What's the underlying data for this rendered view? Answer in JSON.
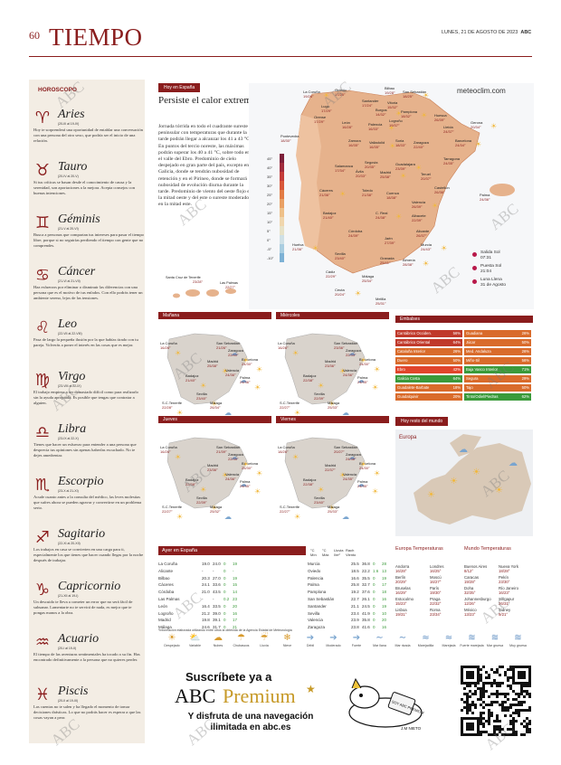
{
  "header": {
    "page_number": "60",
    "section": "TIEMPO",
    "date": "LUNES, 21 DE AGOSTO DE 2023",
    "brand": "ABC"
  },
  "watermark": "ABC",
  "horoscope": {
    "title": "HOROSCOPO",
    "signs": [
      {
        "name": "Aries",
        "glyph": "♈",
        "dates": "(20-III al 19-IV)",
        "text": "Hoy te sorprenderá una oportunidad de entablar una conversación con una persona del otro sexo, que podría ser el inicio de una relación."
      },
      {
        "name": "Tauro",
        "glyph": "♉",
        "dates": "(20-IV al 20-V)",
        "text": "Si tus críticas se basan desde el conocimiento de causa y la serenidad, son aportaciones a la mejora. Acepta consejos con buenas intenciones."
      },
      {
        "name": "Géminis",
        "glyph": "♊",
        "dates": "(21-V al 20-VI)",
        "text": "Busca a personas que compartan tus intereses para pasar el tiempo libre, porque si no seguirías perdiendo el tiempo con gente que no comprendes."
      },
      {
        "name": "Cáncer",
        "glyph": "♋",
        "dates": "(21-VI al 21-VII)",
        "text": "Haz esfuerzos por eliminar o disminuir las diferencias con una persona que es el motivo de tus enfados. Con ello podrás tener un ambiente sereno, lejos de las tensiones."
      },
      {
        "name": "Leo",
        "glyph": "♌",
        "dates": "(22-VII al 22-VIII)",
        "text": "Pasa de largo la pequeña ilusión por la que habías tirado con tu pareja. Volverás a poner el interés en las cosas que es mejor."
      },
      {
        "name": "Virgo",
        "glyph": "♍",
        "dates": "(23-VIII al 22-IX)",
        "text": "El trabajo empieza a ser demasiado difícil como para realizarlo sin la ayuda apropiada. Es posible que tengas que contratar a alguien."
      },
      {
        "name": "Libra",
        "glyph": "♎",
        "dates": "(23-IX al 22-X)",
        "text": "Tienes que hacer un esfuerzo para entender a una persona que desprecia tus opiniones sin apenas haberlas escuchado. No te dejes amedrentar."
      },
      {
        "name": "Escorpio",
        "glyph": "♏",
        "dates": "(23-X al 21-XI)",
        "text": "Acude cuanto antes a la consulta del médico, las leves molestias que sufres ahora se pueden agravar y convertirse en un problema serio."
      },
      {
        "name": "Sagitario",
        "glyph": "♐",
        "dates": "(22-XI al 20-XII)",
        "text": "Los trabajos en casa se convierten en una carga para ti, especialmente los que tienes que hacer cuando llegas por la noche después de trabajar."
      },
      {
        "name": "Capricornio",
        "glyph": "♑",
        "dates": "(21-XII al 19-I)",
        "text": "Un descuido te lleva a cometer un error que no será fácil de subsanar. Lamentarte no te servirá de nada, es mejor que te pongas manos a la obra."
      },
      {
        "name": "Acuario",
        "glyph": "♒",
        "dates": "(20-I al 19-II)",
        "text": "El tiempo de las aventuras sentimentales ha tocado a su fin. Has encontrado definitivamente a la persona que no quieres perder."
      },
      {
        "name": "Piscis",
        "glyph": "♓",
        "dates": "(20-II al 19-III)",
        "text": "Las cuentas no te salen y ha llegado el momento de tomar decisiones drásticas. Lo que no podrás hacer es esperar a que las cosas vayan a peor."
      }
    ]
  },
  "today": {
    "label": "Hoy en España",
    "headline": "Persiste el calor extremo",
    "body": "Jornada tórrida en todo el cuadrante sureste peninsular con temperaturas que durante la tarde podrán llegar a alcanzar los 41 a 43 °C. En puntos del tercio noreste, las máximas podrán superar los 40 a 41 °C, sobre todo en el valle del Ebro. Predominio de cielo despejado en gran parte del país, excepto en Galicia, donde se tendrán nubosidad de retención y en el Pirineo, donde se formará nubosidad de evolución diurna durante la tarde. Predominio de viento del oeste flojo en la mitad oeste y del este o sureste moderado en la mitad este."
  },
  "brand_site": "meteoclim.com",
  "main_map": {
    "scale": [
      "45°",
      "40°",
      "35°",
      "30°",
      "25°",
      "20°",
      "15°",
      "10°",
      "5°",
      "0°",
      "-5°",
      "-10°"
    ],
    "cities": [
      {
        "name": "La Coruña",
        "t": "19/26°"
      },
      {
        "name": "Oviedo",
        "t": "17/25°"
      },
      {
        "name": "Bilbao",
        "t": "19/28°"
      },
      {
        "name": "San Sebastián",
        "t": "18/25°"
      },
      {
        "name": "Lugo",
        "t": "17/29°"
      },
      {
        "name": "Santander",
        "t": "17/24°"
      },
      {
        "name": "Pamplona",
        "t": "18/32°"
      },
      {
        "name": "Huesca",
        "t": "26/39°"
      },
      {
        "name": "Orense",
        "t": "17/29°"
      },
      {
        "name": "Burgos",
        "t": "14/32°"
      },
      {
        "name": "Vitoria",
        "t": "15/32°"
      },
      {
        "name": "Lleida",
        "t": "24/37°"
      },
      {
        "name": "Gerona",
        "t": "20/34°"
      },
      {
        "name": "Pontevedra",
        "t": "18/30°"
      },
      {
        "name": "León",
        "t": "16/28°"
      },
      {
        "name": "Palencia",
        "t": "16/33°"
      },
      {
        "name": "Logroño",
        "t": "19/37°"
      },
      {
        "name": "Zamora",
        "t": "16/35°"
      },
      {
        "name": "Valladolid",
        "t": "16/35°"
      },
      {
        "name": "Soria",
        "t": "18/33°"
      },
      {
        "name": "Zaragoza",
        "t": "22/40°"
      },
      {
        "name": "Barcelona",
        "t": "24/34°"
      },
      {
        "name": "Salamanca",
        "t": "17/34°"
      },
      {
        "name": "Segovia",
        "t": "20/35°"
      },
      {
        "name": "Guadalajara",
        "t": "23/39°"
      },
      {
        "name": "Tarragona",
        "t": "24/35°"
      },
      {
        "name": "Ávila",
        "t": "20/33°"
      },
      {
        "name": "Madrid",
        "t": "25/38°"
      },
      {
        "name": "Teruel",
        "t": "20/37°"
      },
      {
        "name": "Castellón",
        "t": "26/36°"
      },
      {
        "name": "Cáceres",
        "t": "21/36°"
      },
      {
        "name": "Toledo",
        "t": "21/38°"
      },
      {
        "name": "Cuenca",
        "t": "18/38°"
      },
      {
        "name": "Valencia",
        "t": "26/39°"
      },
      {
        "name": "Palma",
        "t": "24/36°"
      },
      {
        "name": "Badajoz",
        "t": "21/40°"
      },
      {
        "name": "C. Real",
        "t": "24/38°"
      },
      {
        "name": "Albacete",
        "t": "22/39°"
      },
      {
        "name": "Alicante",
        "t": "26/37°"
      },
      {
        "name": "Huelva",
        "t": "21/36°"
      },
      {
        "name": "Córdoba",
        "t": "24/39°"
      },
      {
        "name": "Jaén",
        "t": "27/39°"
      },
      {
        "name": "Murcia",
        "t": "24/43°"
      },
      {
        "name": "Sevilla",
        "t": "23/40°"
      },
      {
        "name": "Granada",
        "t": "25/41°"
      },
      {
        "name": "Almería",
        "t": "28/38°"
      },
      {
        "name": "Cádiz",
        "t": "22/29°"
      },
      {
        "name": "Málaga",
        "t": "25/34°"
      },
      {
        "name": "Ceuta",
        "t": "20/24°"
      },
      {
        "name": "Melilla",
        "t": "25/31°"
      }
    ],
    "canarias": [
      {
        "name": "Santa Cruz de Tenerife",
        "t": "23/28°"
      },
      {
        "name": "Las Palmas",
        "t": "22/27°"
      }
    ]
  },
  "sun": [
    {
      "label": "Salida Sol",
      "value": "07:31"
    },
    {
      "label": "Puesta Sol",
      "value": "21:04"
    },
    {
      "label": "Luna Llena",
      "value": "31 de Agosto"
    }
  ],
  "forecast_panels": [
    {
      "day": "Mañana",
      "cities": [
        {
          "name": "La Coruña",
          "t": "16/26°"
        },
        {
          "name": "San Sebastián",
          "t": "21/26°"
        },
        {
          "name": "Barcelona",
          "t": "24/30°"
        },
        {
          "name": "Zaragoza",
          "t": "22/40°"
        },
        {
          "name": "Madrid",
          "t": "25/38°"
        },
        {
          "name": "Valencia",
          "t": "24/36°"
        },
        {
          "name": "Palma",
          "t": "24/36°"
        },
        {
          "name": "Badajoz",
          "t": "21/40°"
        },
        {
          "name": "Sevilla",
          "t": "23/40°"
        },
        {
          "name": "Málaga",
          "t": "26/34°"
        },
        {
          "name": "S.C.Tenerife",
          "t": "22/28°"
        }
      ]
    },
    {
      "day": "Miércoles",
      "cities": [
        {
          "name": "La Coruña",
          "t": "16/26°"
        },
        {
          "name": "San Sebastián",
          "t": "23/36°"
        },
        {
          "name": "Barcelona",
          "t": "24/30°"
        },
        {
          "name": "Zaragoza",
          "t": "22/33°"
        },
        {
          "name": "Madrid",
          "t": "23/36°"
        },
        {
          "name": "Valencia",
          "t": "24/36°"
        },
        {
          "name": "Palma",
          "t": "24/35°"
        },
        {
          "name": "Badajoz",
          "t": "22/38°"
        },
        {
          "name": "Sevilla",
          "t": "22/39°"
        },
        {
          "name": "Málaga",
          "t": "25/33°"
        },
        {
          "name": "S.C.Tenerife",
          "t": "22/27°"
        }
      ]
    },
    {
      "day": "Jueves",
      "cities": [
        {
          "name": "La Coruña",
          "t": "16/26°"
        },
        {
          "name": "San Sebastián",
          "t": "21/39°"
        },
        {
          "name": "Barcelona",
          "t": "25/30°"
        },
        {
          "name": "Zaragoza",
          "t": "22/35°"
        },
        {
          "name": "Madrid",
          "t": "23/36°"
        },
        {
          "name": "Valencia",
          "t": "24/36°"
        },
        {
          "name": "Palma",
          "t": "24/35°"
        },
        {
          "name": "Badajoz",
          "t": "22/38°"
        },
        {
          "name": "Sevilla",
          "t": "22/39°"
        },
        {
          "name": "Málaga",
          "t": "25/32°"
        },
        {
          "name": "S.C.Tenerife",
          "t": "22/27°"
        }
      ]
    },
    {
      "day": "Viernes",
      "cities": [
        {
          "name": "La Coruña",
          "t": "18/26°"
        },
        {
          "name": "San Sebastián",
          "t": "20/27°"
        },
        {
          "name": "Barcelona",
          "t": "24/30°"
        },
        {
          "name": "Zaragoza",
          "t": "24/38°"
        },
        {
          "name": "Madrid",
          "t": "22/37°"
        },
        {
          "name": "Valencia",
          "t": "24/35°"
        },
        {
          "name": "Palma",
          "t": "24/35°"
        },
        {
          "name": "Badajoz",
          "t": "22/38°"
        },
        {
          "name": "Sevilla",
          "t": "23/40°"
        },
        {
          "name": "Málaga",
          "t": "25/33°"
        },
        {
          "name": "S.C.Tenerife",
          "t": "22/27°"
        }
      ]
    }
  ],
  "embalses": {
    "title": "Embalses",
    "left": [
      {
        "name": "Cantábrico Occiden.",
        "v": "56%",
        "c": "#c0392b"
      },
      {
        "name": "Cantábrico Oriental",
        "v": "64%",
        "c": "#c0392b"
      },
      {
        "name": "Cataluña Interior",
        "v": "26%",
        "c": "#d96b2b"
      },
      {
        "name": "Duero",
        "v": "50%",
        "c": "#d96b2b"
      },
      {
        "name": "Ebro",
        "v": "42%",
        "c": "#e1452b"
      },
      {
        "name": "Galicia Costa",
        "v": "64%",
        "c": "#3a9a3a"
      },
      {
        "name": "Guadalete-Barbate",
        "v": "18%",
        "c": "#d96b2b"
      },
      {
        "name": "Guadalquivir",
        "v": "20%",
        "c": "#d96b2b"
      }
    ],
    "right": [
      {
        "name": "Guadiana",
        "v": "26%",
        "c": "#d96b2b"
      },
      {
        "name": "Júcar",
        "v": "50%",
        "c": "#d96b2b"
      },
      {
        "name": "Med. Andaluza",
        "v": "26%",
        "c": "#d96b2b"
      },
      {
        "name": "Miño-Sil",
        "v": "56%",
        "c": "#d96b2b"
      },
      {
        "name": "Baja Vasco Interior",
        "v": "71%",
        "c": "#3a9a3a"
      },
      {
        "name": "Segura",
        "v": "29%",
        "c": "#d96b2b"
      },
      {
        "name": "Tajo",
        "v": "50%",
        "c": "#d96b2b"
      },
      {
        "name": "Tinto/Odiel/Piedras",
        "v": "62%",
        "c": "#3a9a3a"
      }
    ]
  },
  "world": {
    "label": "Hoy resto del mundo",
    "region": "Europa"
  },
  "ayer": {
    "label": "Ayer en España",
    "headers": [
      "°C Mín",
      "°C Máx",
      "Lluvia l/m²",
      "Rach Viento"
    ],
    "left": [
      [
        "La Coruña",
        "19.0",
        "24.0",
        "0",
        "19"
      ],
      [
        "Alicante",
        "-",
        "-",
        "0",
        "-"
      ],
      [
        "Bilbao",
        "20.3",
        "27.0",
        "0",
        "19"
      ],
      [
        "Cáceres",
        "24.1",
        "33.6",
        "0",
        "15"
      ],
      [
        "Córdoba",
        "21.0",
        "43.5",
        "0",
        "14"
      ],
      [
        "Las Palmas",
        "-",
        "-",
        "0.2",
        "23"
      ],
      [
        "León",
        "16.4",
        "33.5",
        "0",
        "20"
      ],
      [
        "Logroño",
        "21.2",
        "39.0",
        "0",
        "16"
      ],
      [
        "Madrid",
        "19.8",
        "39.1",
        "0",
        "17"
      ],
      [
        "Málaga",
        "24.6",
        "31.7",
        "0",
        "21"
      ]
    ],
    "right": [
      [
        "Murcia",
        "25.5",
        "36.8",
        "0",
        "28"
      ],
      [
        "Oviedo",
        "18.5",
        "22.2",
        "1.6",
        "13"
      ],
      [
        "Palencia",
        "16.6",
        "35.5",
        "0",
        "19"
      ],
      [
        "Palma",
        "25.8",
        "32.7",
        "0",
        "17"
      ],
      [
        "Pamplona",
        "19.2",
        "37.6",
        "0",
        "18"
      ],
      [
        "San Sebastián",
        "22.7",
        "26.1",
        "0",
        "16"
      ],
      [
        "Santander",
        "21.1",
        "24.5",
        "0",
        "19"
      ],
      [
        "Sevilla",
        "23.4",
        "41.9",
        "0",
        "10"
      ],
      [
        "Valencia",
        "23.9",
        "35.8",
        "0",
        "20"
      ],
      [
        "Zaragoza",
        "23.8",
        "41.6",
        "0",
        "16"
      ]
    ],
    "note": "*Información elaborada utilizando entre otros la obtenida de la Agencia Estatal de Meteorología"
  },
  "legend": [
    {
      "label": "Despejado",
      "glyph": "☀"
    },
    {
      "label": "Variable",
      "glyph": "⛅"
    },
    {
      "label": "Nubes",
      "glyph": "☁"
    },
    {
      "label": "Chubascos",
      "glyph": "☂"
    },
    {
      "label": "Lluvia",
      "glyph": "☔"
    },
    {
      "label": "Nieve",
      "glyph": "❄"
    },
    {
      "label": "Débil",
      "glyph": "➔"
    },
    {
      "label": "Moderado",
      "glyph": "➔"
    },
    {
      "label": "Fuerte",
      "glyph": "➔"
    },
    {
      "label": "Mar llana",
      "glyph": "∼"
    },
    {
      "label": "Mar rizada",
      "glyph": "∼"
    },
    {
      "label": "Marejadilla",
      "glyph": "≈"
    },
    {
      "label": "Marejada",
      "glyph": "≈"
    },
    {
      "label": "Fuerte marejada",
      "glyph": "≋"
    },
    {
      "label": "Mar gruesa",
      "glyph": "≋"
    },
    {
      "label": "Muy gruesa",
      "glyph": "≋"
    }
  ],
  "europe_temps": {
    "title": "Europa Temperaturas",
    "cols": [
      [
        [
          "Andorra",
          "16/28°"
        ],
        [
          "Berlín",
          "20/29°"
        ],
        [
          "Bruselas",
          "16/29°"
        ],
        [
          "Estocolmo",
          "15/23°"
        ],
        [
          "Lisboa",
          "19/31°"
        ]
      ],
      [
        [
          "Londres",
          "16/25°"
        ],
        [
          "Moscú",
          "16/27°"
        ],
        [
          "París",
          "19/30°"
        ],
        [
          "Praga",
          "22/32°"
        ],
        [
          "Roma",
          "23/34°"
        ]
      ]
    ]
  },
  "world_temps": {
    "title": "Mundo Temperaturas",
    "cols": [
      [
        [
          "Buenos Aires",
          "8/12°"
        ],
        [
          "Caracas",
          "19/28°"
        ],
        [
          "Doha",
          "32/35°"
        ],
        [
          "Johannesburgo",
          "12/26°"
        ],
        [
          "México",
          "13/23°"
        ]
      ],
      [
        [
          "Nueva York",
          "18/28°"
        ],
        [
          "Pekín",
          "23/30°"
        ],
        [
          "Río Janeiro",
          "16/23°"
        ],
        [
          "Singapur",
          "26/31°"
        ],
        [
          "Sidney",
          "9/21°"
        ]
      ]
    ]
  },
  "ad": {
    "subscribe": "Suscríbete ya a",
    "abc": "ABC",
    "premium": "Premium",
    "line2": "Y disfruta de una navegación ilimitada en abc.es",
    "cartoon_text": "SOY ABC PREMIUM",
    "signature": "J.M NIETO"
  }
}
